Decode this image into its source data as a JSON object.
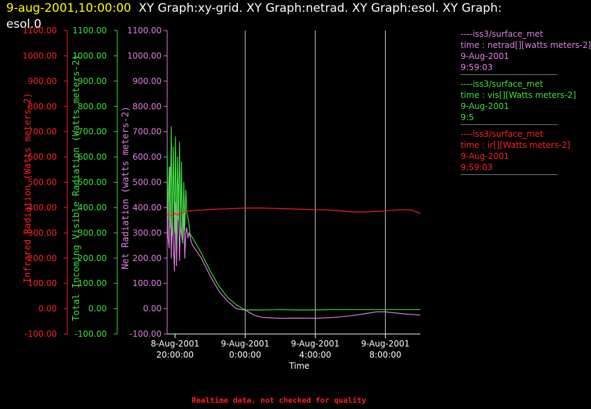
{
  "header": {
    "timestamp": "9-aug-2001,10:00:00",
    "title_line1": "XY Graph:xy-grid.  XY Graph:netrad.  XY Graph:esol.  XY Graph:",
    "title_line2": "esol.0"
  },
  "legend": [
    {
      "line1": "----iss3/surface_met",
      "line2": "time : netrad[][watts meters-2]",
      "line3": "9-Aug-2001",
      "line4": "9:59:03",
      "color": "#e080e0"
    },
    {
      "line1": "----iss3/surface_met",
      "line2": "time : vis[][Watts meters-2]",
      "line3": "9-Aug-2001",
      "line4": "9:5",
      "color": "#40e040"
    },
    {
      "line1": "----iss3/surface_met",
      "line2": "time : ir[][Watts meters-2]",
      "line3": "9-Aug-2001",
      "line4": "9:59:03",
      "color": "#ff2020"
    }
  ],
  "footer": "Realtime data, not checked for quality",
  "chart_data": {
    "type": "line",
    "xlabel": "Time",
    "x_range": [
      "2001-08-08 19:33",
      "2001-08-09 10:00"
    ],
    "x_ticks": [
      {
        "x": "2001-08-08 20:00",
        "line1": "8-Aug-2001",
        "line2": "20:00:00"
      },
      {
        "x": "2001-08-09 00:00",
        "line1": "9-Aug-2001",
        "line2": "0:00:00"
      },
      {
        "x": "2001-08-09 04:00",
        "line1": "9-Aug-2001",
        "line2": "4:00:00"
      },
      {
        "x": "2001-08-09 08:00",
        "line1": "9-Aug-2001",
        "line2": "8:00:00"
      }
    ],
    "y_ticks": [
      "1100.00",
      "1000.00",
      "900.00",
      "800.00",
      "700.00",
      "600.00",
      "500.00",
      "400.00",
      "300.00",
      "200.00",
      "100.00",
      "0.00",
      "-100.00"
    ],
    "ylim": [
      -100,
      1100
    ],
    "grid": {
      "vertical": true,
      "horizontal": false
    },
    "axes": [
      {
        "label": "Infrared Radiation (Watts meters-2)",
        "color": "#ff2020"
      },
      {
        "label": "Total Incoming Visible Radiation (Watts meters-2)",
        "color": "#40e040"
      },
      {
        "label": "Net Radiation (watts meters-2)",
        "color": "#e080e0"
      }
    ],
    "series": [
      {
        "color": "#e080e0",
        "x": [
          "2001-08-08 19:33",
          "2001-08-08 19:36",
          "2001-08-08 19:40",
          "2001-08-08 19:43",
          "2001-08-08 19:47",
          "2001-08-08 19:50",
          "2001-08-08 19:54",
          "2001-08-08 19:58",
          "2001-08-08 20:01",
          "2001-08-08 20:05",
          "2001-08-08 20:08",
          "2001-08-08 20:12",
          "2001-08-08 20:15",
          "2001-08-08 20:19",
          "2001-08-08 20:22",
          "2001-08-08 20:26",
          "2001-08-08 20:30",
          "2001-08-08 20:33",
          "2001-08-08 20:37",
          "2001-08-08 20:40",
          "2001-08-08 20:44",
          "2001-08-08 20:47",
          "2001-08-08 20:51",
          "2001-08-08 20:54",
          "2001-08-08 21:00",
          "2001-08-08 21:30",
          "2001-08-08 22:00",
          "2001-08-08 22:30",
          "2001-08-08 23:00",
          "2001-08-08 23:30",
          "2001-08-09 00:00",
          "2001-08-09 00:30",
          "2001-08-09 01:00",
          "2001-08-09 02:00",
          "2001-08-09 03:00",
          "2001-08-09 04:00",
          "2001-08-09 05:00",
          "2001-08-09 06:00",
          "2001-08-09 07:00",
          "2001-08-09 07:30",
          "2001-08-09 08:00",
          "2001-08-09 09:00",
          "2001-08-09 10:00"
        ],
        "y": [
          500,
          280,
          240,
          560,
          200,
          380,
          260,
          150,
          420,
          170,
          330,
          490,
          190,
          360,
          300,
          260,
          380,
          200,
          300,
          320,
          280,
          300,
          290,
          270,
          250,
          200,
          130,
          70,
          30,
          0,
          -5,
          -25,
          -35,
          -38,
          -37,
          -38,
          -35,
          -28,
          -18,
          -12,
          -12,
          -20,
          -25
        ]
      },
      {
        "color": "#40e040",
        "x": [
          "2001-08-08 19:33",
          "2001-08-08 19:36",
          "2001-08-08 19:40",
          "2001-08-08 19:43",
          "2001-08-08 19:47",
          "2001-08-08 19:50",
          "2001-08-08 19:54",
          "2001-08-08 19:58",
          "2001-08-08 20:01",
          "2001-08-08 20:05",
          "2001-08-08 20:08",
          "2001-08-08 20:12",
          "2001-08-08 20:15",
          "2001-08-08 20:19",
          "2001-08-08 20:22",
          "2001-08-08 20:26",
          "2001-08-08 20:30",
          "2001-08-08 20:33",
          "2001-08-08 20:37",
          "2001-08-08 20:40",
          "2001-08-08 20:44",
          "2001-08-08 20:47",
          "2001-08-08 20:51",
          "2001-08-08 20:54",
          "2001-08-08 21:00",
          "2001-08-08 21:30",
          "2001-08-08 22:00",
          "2001-08-08 22:30",
          "2001-08-08 23:00",
          "2001-08-08 23:30",
          "2001-08-09 00:00",
          "2001-08-09 00:30",
          "2001-08-09 01:00",
          "2001-08-09 02:00",
          "2001-08-09 03:00",
          "2001-08-09 04:00",
          "2001-08-09 05:00",
          "2001-08-09 06:00",
          "2001-08-09 07:00",
          "2001-08-09 08:00",
          "2001-08-09 09:00",
          "2001-08-09 10:00"
        ],
        "y": [
          620,
          350,
          560,
          320,
          720,
          290,
          640,
          300,
          680,
          250,
          600,
          350,
          660,
          300,
          580,
          260,
          500,
          310,
          470,
          380,
          360,
          340,
          300,
          290,
          280,
          220,
          150,
          90,
          45,
          15,
          -5,
          -5,
          -5,
          -3,
          -5,
          -5,
          -3,
          -3,
          -3,
          -3,
          -3,
          -3
        ]
      },
      {
        "color": "#ff2020",
        "x": [
          "2001-08-08 19:33",
          "2001-08-08 19:40",
          "2001-08-08 19:47",
          "2001-08-08 19:54",
          "2001-08-08 20:01",
          "2001-08-08 20:08",
          "2001-08-08 20:15",
          "2001-08-08 20:22",
          "2001-08-08 20:30",
          "2001-08-08 20:40",
          "2001-08-08 21:00",
          "2001-08-08 21:30",
          "2001-08-08 22:00",
          "2001-08-08 23:00",
          "2001-08-09 00:00",
          "2001-08-09 01:00",
          "2001-08-09 02:00",
          "2001-08-09 03:00",
          "2001-08-09 04:00",
          "2001-08-09 05:00",
          "2001-08-09 06:00",
          "2001-08-09 07:00",
          "2001-08-09 08:00",
          "2001-08-09 09:00",
          "2001-08-09 09:30",
          "2001-08-09 10:00"
        ],
        "y": [
          375,
          368,
          372,
          366,
          378,
          370,
          380,
          374,
          382,
          385,
          388,
          390,
          393,
          395,
          398,
          398,
          396,
          394,
          392,
          390,
          383,
          383,
          387,
          392,
          390,
          377
        ]
      }
    ]
  }
}
